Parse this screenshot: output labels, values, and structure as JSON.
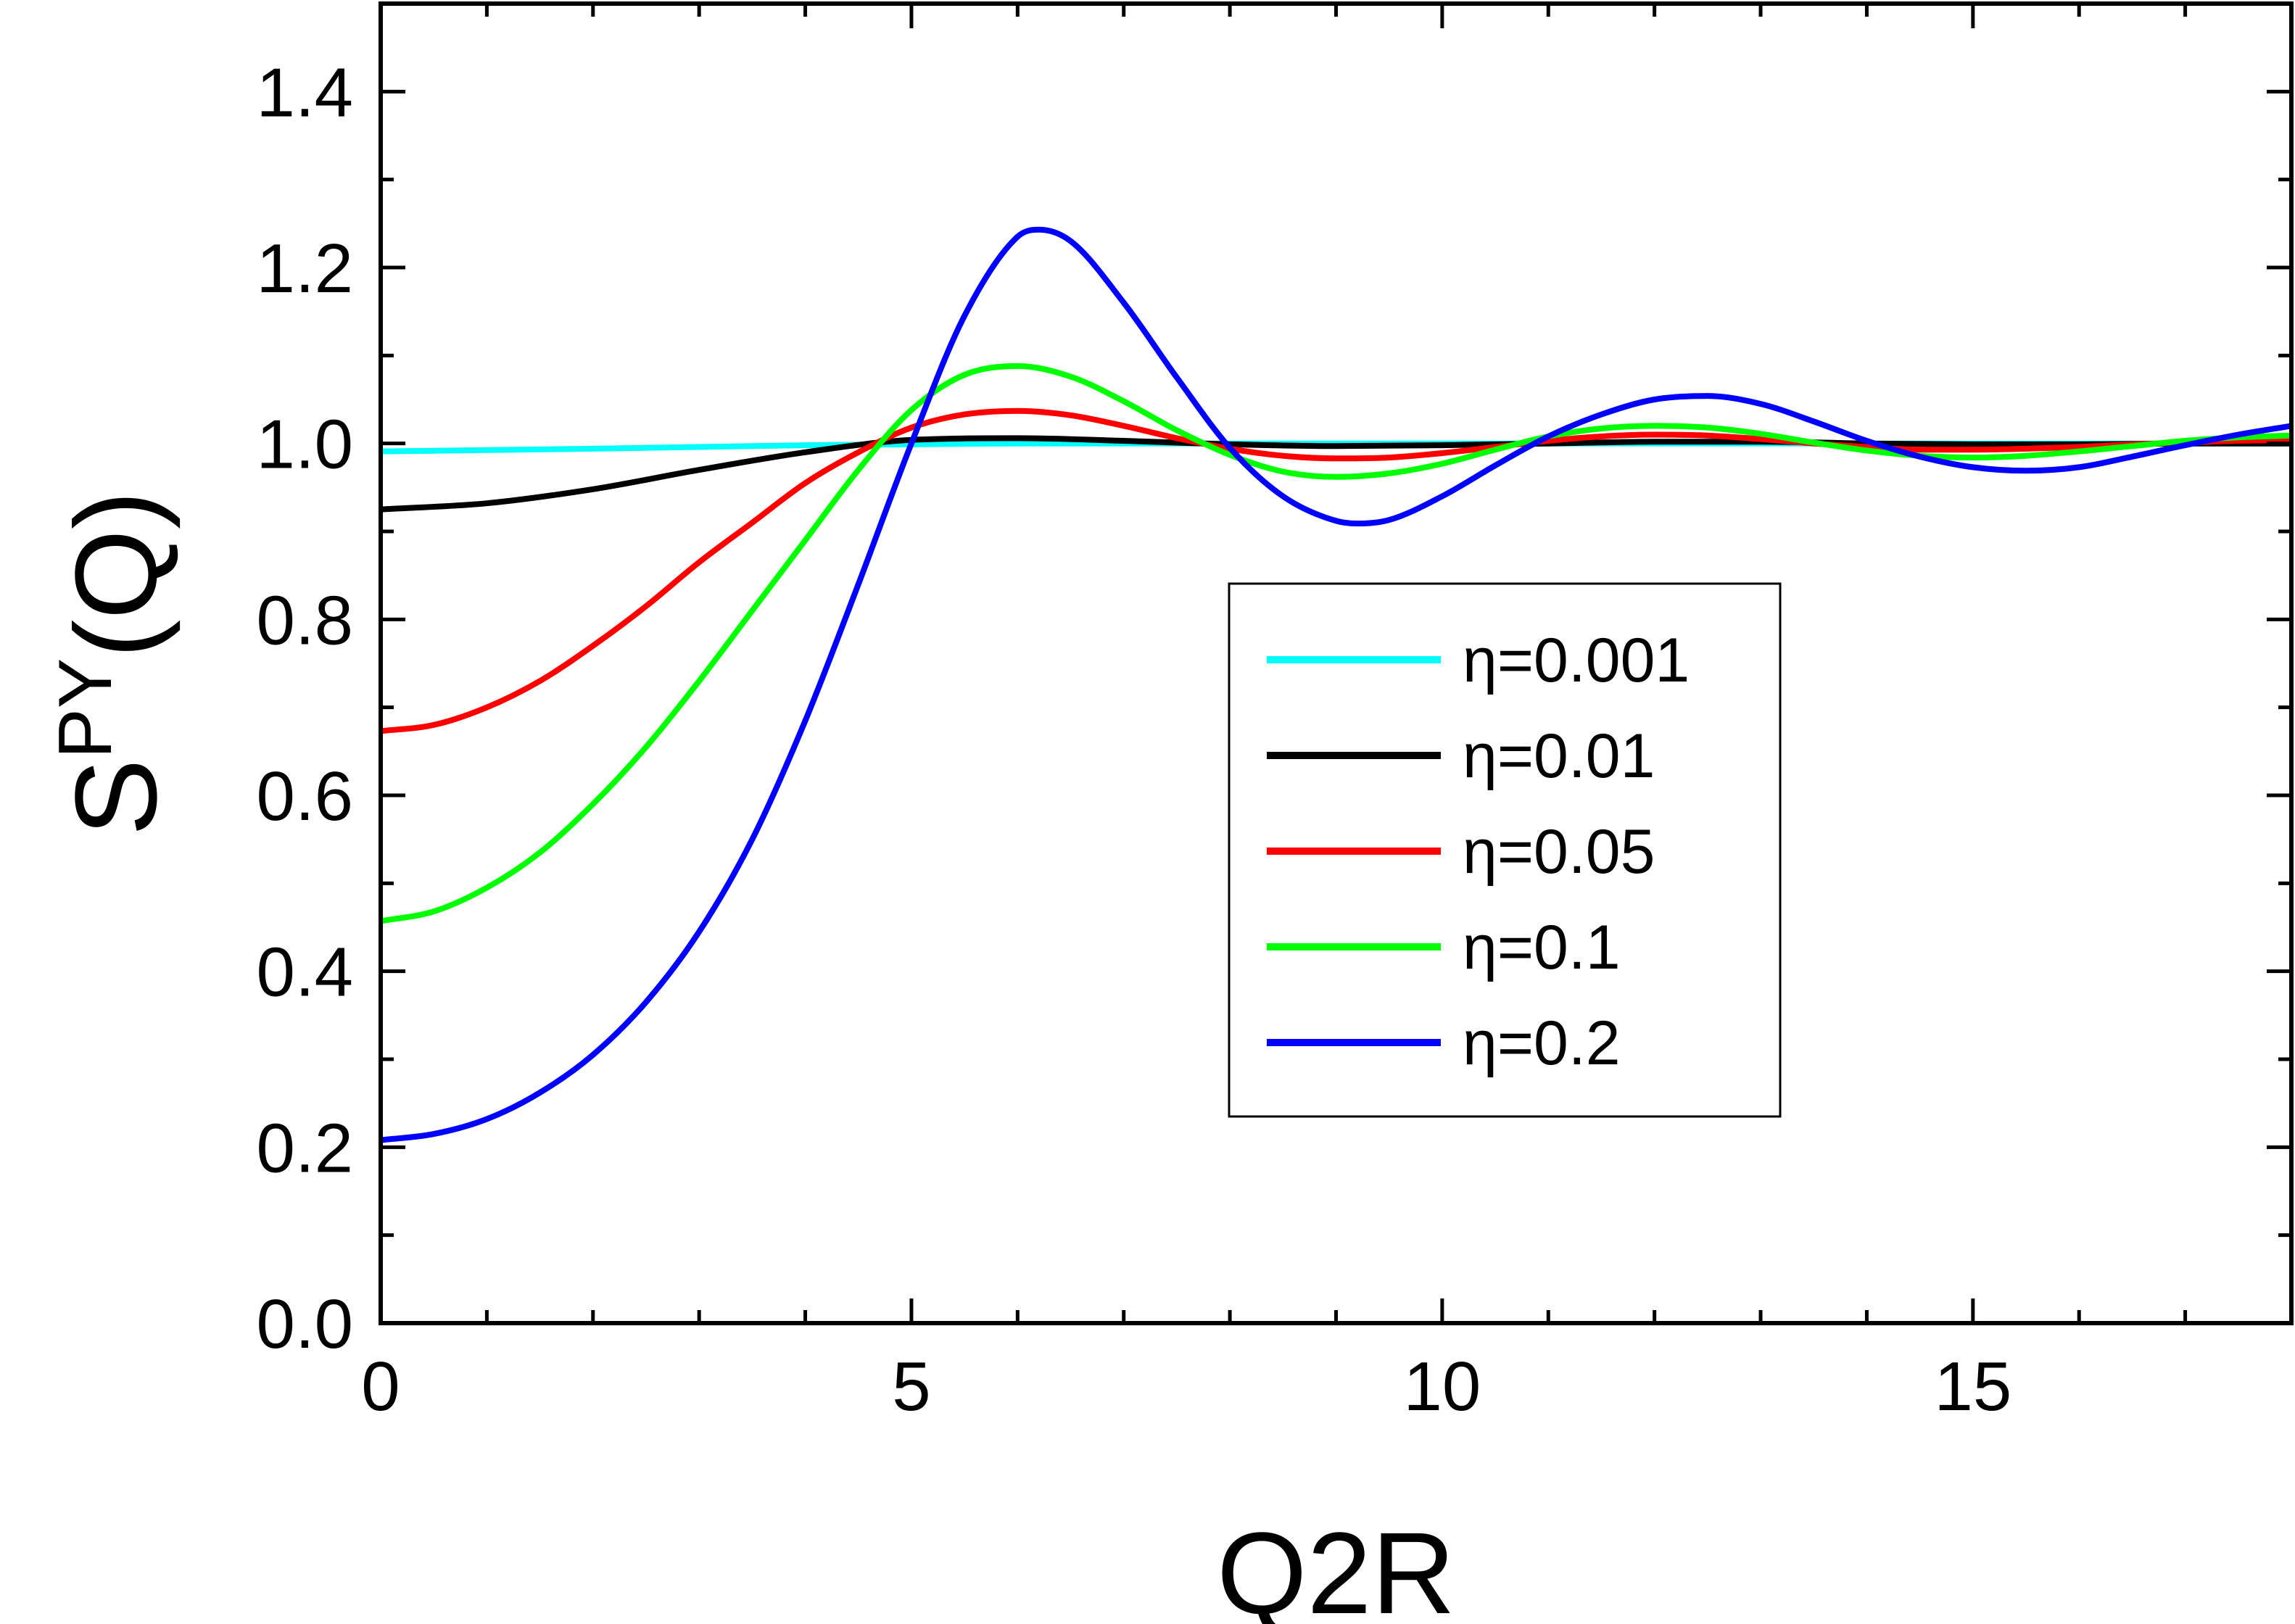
{
  "chart_data": {
    "type": "line",
    "xlabel": "Q2R",
    "ylabel": {
      "base": "S",
      "superscript": "PY",
      "suffix": "(Q)"
    },
    "xlim": [
      0,
      18
    ],
    "ylim": [
      0,
      1.5
    ],
    "xticks": [
      0,
      5,
      10,
      15
    ],
    "yticks": [
      0.0,
      0.2,
      0.4,
      0.6,
      0.8,
      1.0,
      1.2,
      1.4
    ],
    "xtick_labels": [
      "0",
      "5",
      "10",
      "15"
    ],
    "ytick_labels": [
      "0.0",
      "0.2",
      "0.4",
      "0.6",
      "0.8",
      "1.0",
      "1.2",
      "1.4"
    ],
    "grid": false,
    "legend_position": "center-right",
    "series": [
      {
        "name": "η=0.001",
        "color": "#00FFFF",
        "x": [
          0,
          2,
          4,
          5,
          6,
          8,
          10,
          12,
          14,
          16,
          18
        ],
        "y": [
          0.991,
          0.994,
          0.998,
          0.999,
          1.0,
          1.0,
          1.0,
          1.0,
          1.0,
          1.0,
          1.0
        ]
      },
      {
        "name": "η=0.01",
        "color": "#000000",
        "x": [
          0,
          1,
          2,
          3,
          4,
          5,
          6,
          7,
          8,
          9,
          10,
          11,
          12,
          13,
          14,
          15,
          16,
          17,
          18
        ],
        "y": [
          0.925,
          0.932,
          0.948,
          0.97,
          0.99,
          1.004,
          1.006,
          1.003,
          0.999,
          0.997,
          0.998,
          1.0,
          1.002,
          1.002,
          1.0,
          0.999,
          0.999,
          1.0,
          1.0
        ]
      },
      {
        "name": "η=0.05",
        "color": "#FF0000",
        "x": [
          0,
          0.5,
          1,
          1.5,
          2,
          2.5,
          3,
          3.5,
          4,
          4.5,
          5,
          5.5,
          6,
          6.5,
          7,
          7.5,
          8,
          8.5,
          9,
          9.5,
          10,
          10.5,
          11,
          11.5,
          12,
          12.5,
          13,
          13.5,
          14,
          14.5,
          15,
          15.5,
          16,
          16.5,
          17,
          17.5,
          18
        ],
        "y": [
          0.673,
          0.68,
          0.7,
          0.73,
          0.77,
          0.815,
          0.865,
          0.91,
          0.955,
          0.99,
          1.018,
          1.033,
          1.037,
          1.032,
          1.02,
          1.006,
          0.994,
          0.986,
          0.983,
          0.984,
          0.989,
          0.996,
          1.003,
          1.008,
          1.01,
          1.009,
          1.005,
          1.0,
          0.996,
          0.993,
          0.993,
          0.994,
          0.996,
          0.999,
          1.001,
          1.003,
          1.004
        ]
      },
      {
        "name": "η=0.1",
        "color": "#00FF00",
        "x": [
          0,
          0.5,
          1,
          1.5,
          2,
          2.5,
          3,
          3.5,
          4,
          4.5,
          5,
          5.5,
          6,
          6.5,
          7,
          7.5,
          8,
          8.5,
          9,
          9.5,
          10,
          10.5,
          11,
          11.5,
          12,
          12.5,
          13,
          13.5,
          14,
          14.5,
          15,
          15.5,
          16,
          16.5,
          17,
          17.5,
          18
        ],
        "y": [
          0.457,
          0.468,
          0.495,
          0.535,
          0.59,
          0.655,
          0.73,
          0.81,
          0.89,
          0.97,
          1.038,
          1.078,
          1.088,
          1.076,
          1.048,
          1.015,
          0.987,
          0.968,
          0.962,
          0.966,
          0.977,
          0.993,
          1.008,
          1.017,
          1.02,
          1.018,
          1.011,
          1.001,
          0.992,
          0.986,
          0.984,
          0.986,
          0.991,
          0.997,
          1.003,
          1.007,
          1.009
        ]
      },
      {
        "name": "η=0.2",
        "color": "#0000FF",
        "x": [
          0,
          0.5,
          1,
          1.5,
          2,
          2.5,
          3,
          3.5,
          4,
          4.5,
          5,
          5.5,
          6,
          6.2,
          6.5,
          7,
          7.5,
          8,
          8.5,
          9,
          9.2,
          9.5,
          10,
          10.5,
          11,
          11.5,
          12,
          12.5,
          13,
          13.5,
          14,
          14.5,
          15,
          15.5,
          16,
          16.5,
          17,
          17.5,
          18
        ],
        "y": [
          0.208,
          0.215,
          0.232,
          0.262,
          0.305,
          0.365,
          0.445,
          0.55,
          0.685,
          0.84,
          1.0,
          1.145,
          1.235,
          1.243,
          1.23,
          1.16,
          1.075,
          0.995,
          0.94,
          0.912,
          0.909,
          0.913,
          0.94,
          0.975,
          1.008,
          1.033,
          1.05,
          1.054,
          1.045,
          1.025,
          1.003,
          0.985,
          0.973,
          0.969,
          0.973,
          0.985,
          0.998,
          1.01,
          1.02
        ]
      }
    ]
  }
}
